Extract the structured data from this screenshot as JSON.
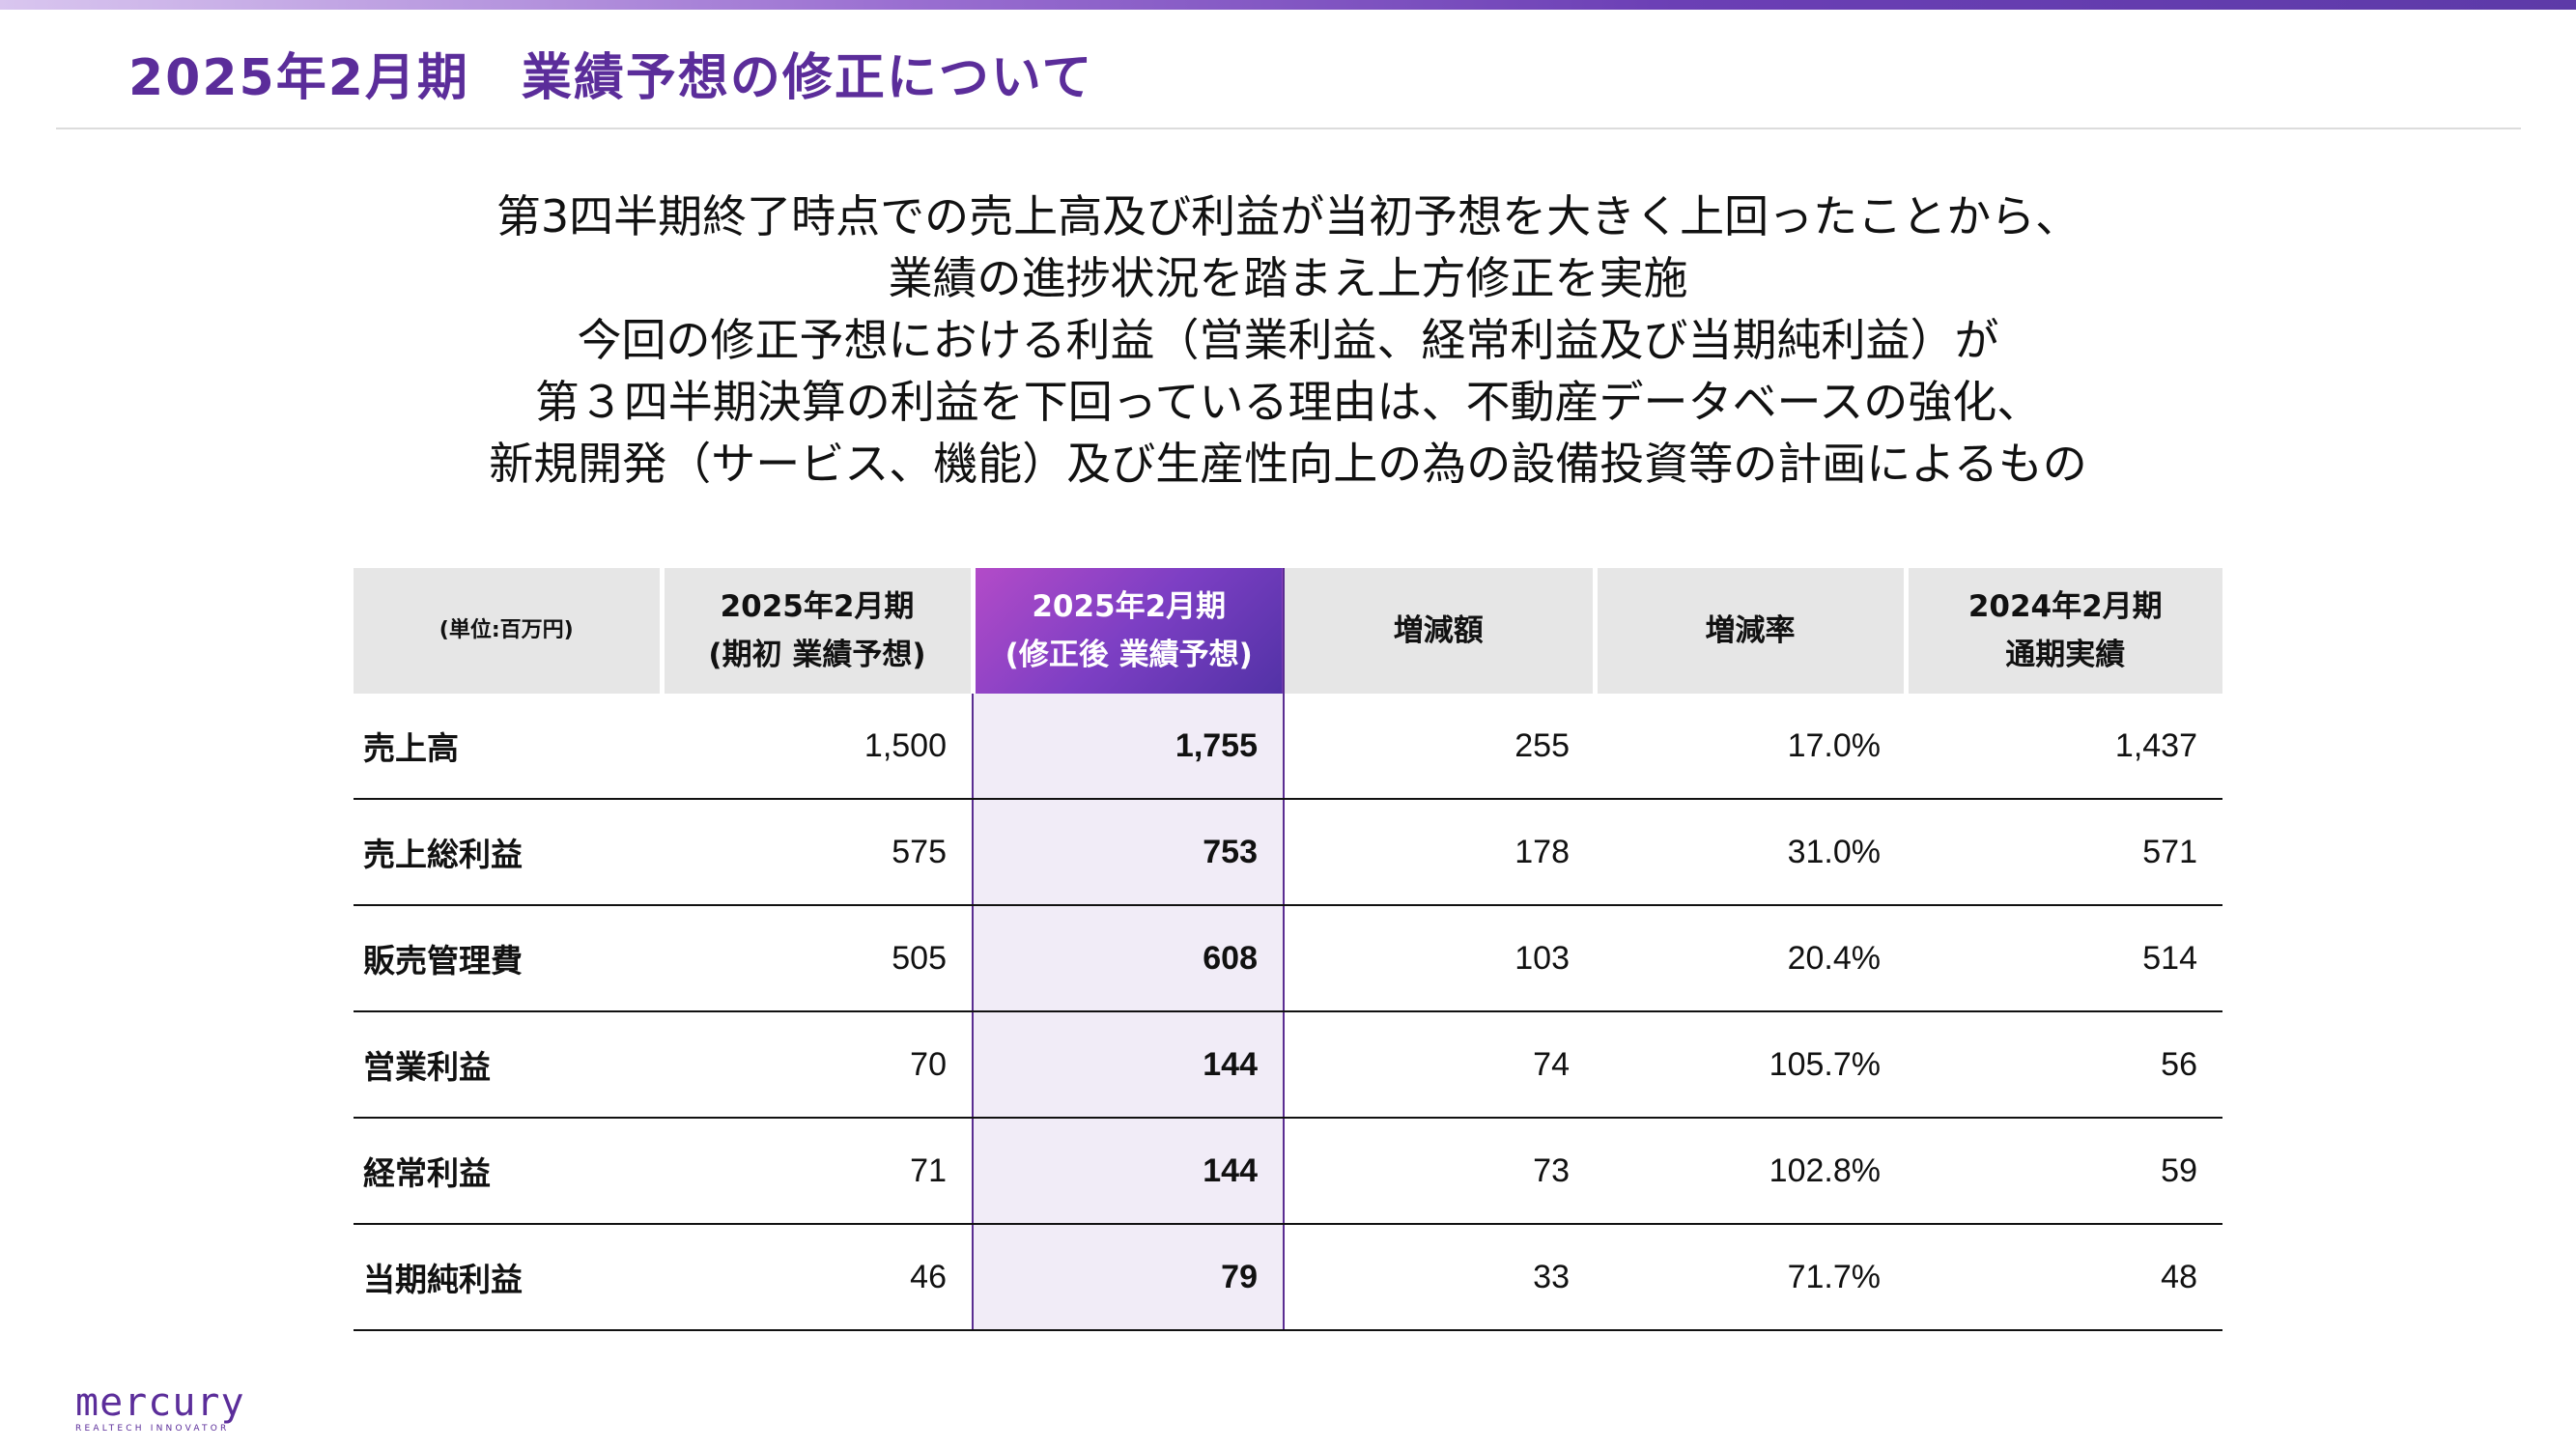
{
  "title": "2025年2月期　業績予想の修正について",
  "summary_lines": [
    "第3四半期終了時点での売上高及び利益が当初予想を大きく上回ったことから、",
    "業績の進捗状況を踏まえ上方修正を実施",
    "今回の修正予想における利益（営業利益、経常利益及び当期純利益）が",
    "第３四半期決算の利益を下回っている理由は、不動産データベースの強化、",
    "新規開発（サービス、機能）及び生産性向上の為の設備投資等の計画によるもの"
  ],
  "table": {
    "unit": "(単位:百万円)",
    "headers": [
      {
        "line1": "2025年2月期",
        "line2": "(期初 業績予想)"
      },
      {
        "line1": "2025年2月期",
        "line2": "(修正後 業績予想)"
      },
      {
        "line1": "増減額",
        "line2": ""
      },
      {
        "line1": "増減率",
        "line2": ""
      },
      {
        "line1": "2024年2月期",
        "line2": "通期実績"
      }
    ],
    "rows": [
      {
        "label": "売上高",
        "initial": "1,500",
        "revised": "1,755",
        "change": "255",
        "rate": "17.0%",
        "prior": "1,437"
      },
      {
        "label": "売上総利益",
        "initial": "575",
        "revised": "753",
        "change": "178",
        "rate": "31.0%",
        "prior": "571"
      },
      {
        "label": "販売管理費",
        "initial": "505",
        "revised": "608",
        "change": "103",
        "rate": "20.4%",
        "prior": "514"
      },
      {
        "label": "営業利益",
        "initial": "70",
        "revised": "144",
        "change": "74",
        "rate": "105.7%",
        "prior": "56"
      },
      {
        "label": "経常利益",
        "initial": "71",
        "revised": "144",
        "change": "73",
        "rate": "102.8%",
        "prior": "59"
      },
      {
        "label": "当期純利益",
        "initial": "46",
        "revised": "79",
        "change": "33",
        "rate": "71.7%",
        "prior": "48"
      }
    ]
  },
  "logo": {
    "word": "mercury",
    "tagline": "REALTECH INNOVATOR"
  },
  "colors": {
    "brand_purple": "#5b2d9a",
    "highlight_fill": "#f1ecf7",
    "header_gray": "#e6e6e6"
  }
}
